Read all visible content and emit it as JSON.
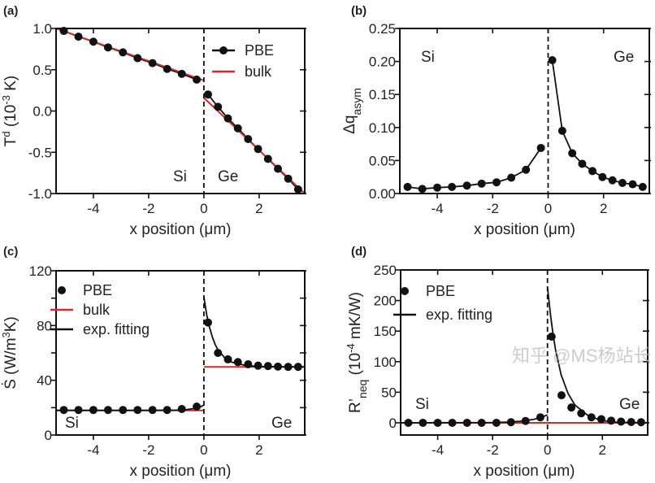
{
  "colors": {
    "pbe": "#111111",
    "bulk": "#d42a2a",
    "fit": "#111111",
    "interface": "#111111"
  },
  "watermark": "知乎 @MS杨站长",
  "chart_data": [
    {
      "panel": "(a)",
      "type": "line",
      "xlabel": "x position (μm)",
      "ylabel": [
        {
          "t": "T"
        },
        {
          "t": "d",
          "sup": true
        },
        {
          "t": " (10"
        },
        {
          "t": "-3",
          "sup": true
        },
        {
          "t": " K)"
        }
      ],
      "xlim": [
        -5.35,
        3.65
      ],
      "ylim": [
        -1.0,
        1.0
      ],
      "xticks": [
        "-4",
        "-2",
        "0",
        "2"
      ],
      "yticks": [
        "-1.0",
        "-0.5",
        "0.0",
        "0.5",
        "1.0"
      ],
      "annotations": [
        "Si",
        "Ge"
      ],
      "legend": {
        "placement": "top-right",
        "entries": [
          "PBE",
          "bulk"
        ]
      },
      "series": [
        {
          "name": "PBE",
          "style": "line-marker",
          "color": "#111111",
          "segments": [
            {
              "x": [
                -5.07,
                -4.54,
                -4.0,
                -3.47,
                -2.93,
                -2.4,
                -1.86,
                -1.33,
                -0.8,
                -0.26
              ],
              "y": [
                0.97,
                0.9,
                0.84,
                0.77,
                0.71,
                0.64,
                0.58,
                0.51,
                0.45,
                0.38
              ]
            },
            {
              "x": [
                0.15,
                0.51,
                0.87,
                1.23,
                1.6,
                1.96,
                2.32,
                2.68,
                3.05,
                3.41
              ],
              "y": [
                0.2,
                0.05,
                -0.09,
                -0.21,
                -0.34,
                -0.46,
                -0.58,
                -0.7,
                -0.82,
                -0.95
              ]
            }
          ]
        },
        {
          "name": "bulk",
          "style": "line",
          "color": "#d42a2a",
          "segments": [
            {
              "x": [
                -5.35,
                0
              ],
              "y": [
                1.0,
                0.37
              ]
            },
            {
              "x": [
                0,
                3.65
              ],
              "y": [
                0.16,
                -1.0
              ]
            }
          ]
        }
      ]
    },
    {
      "panel": "(b)",
      "type": "line",
      "xlabel": "x position (μm)",
      "ylabel": [
        {
          "t": "Δq"
        },
        {
          "t": "asym",
          "sub": true
        }
      ],
      "xlim": [
        -5.35,
        3.65
      ],
      "ylim": [
        0,
        0.25
      ],
      "xticks": [
        "-4",
        "-2",
        "0",
        "2"
      ],
      "yticks": [
        "0.00",
        "0.05",
        "0.10",
        "0.15",
        "0.20",
        "0.25"
      ],
      "annotations": [
        "Si",
        "Ge"
      ],
      "series": [
        {
          "style": "line-marker",
          "color": "#111111",
          "segments": [
            {
              "x": [
                -5.07,
                -4.54,
                -4.0,
                -3.47,
                -2.93,
                -2.4,
                -1.86,
                -1.33,
                -0.8,
                -0.26
              ],
              "y": [
                0.01,
                0.007,
                0.009,
                0.01,
                0.012,
                0.015,
                0.017,
                0.024,
                0.036,
                0.069
              ]
            },
            {
              "x": [
                0.15,
                0.51,
                0.87,
                1.23,
                1.6,
                1.96,
                2.32,
                2.68,
                3.05,
                3.41
              ],
              "y": [
                0.202,
                0.095,
                0.061,
                0.045,
                0.034,
                0.025,
                0.02,
                0.016,
                0.014,
                0.01
              ]
            }
          ]
        }
      ]
    },
    {
      "panel": "(c)",
      "type": "scatter",
      "xlabel": "x position (μm)",
      "ylabel": [
        {
          "t": "Ṡ (W/m"
        },
        {
          "t": "3",
          "sup": true
        },
        {
          "t": "K)"
        }
      ],
      "xlim": [
        -5.35,
        3.65
      ],
      "ylim": [
        0,
        120
      ],
      "xticks": [
        "-4",
        "-2",
        "0",
        "2"
      ],
      "yticks": [
        "0",
        "40",
        "80",
        "120"
      ],
      "annotations": [
        "Si",
        "Ge"
      ],
      "legend": {
        "placement": "top-left",
        "entries": [
          "PBE",
          "bulk",
          "exp. fitting"
        ]
      },
      "series": [
        {
          "name": "bulk",
          "style": "line",
          "color": "#d42a2a",
          "segments": [
            {
              "x": [
                -5.35,
                0
              ],
              "y": [
                18,
                18
              ]
            },
            {
              "x": [
                0,
                3.65
              ],
              "y": [
                49.8,
                49.8
              ]
            }
          ]
        },
        {
          "name": "exp. fitting",
          "style": "line",
          "color": "#111111",
          "segments": [
            {
              "x": [
                -5.35,
                -2,
                -1,
                -0.6,
                -0.3,
                -0.1,
                0
              ],
              "y": [
                18,
                18,
                18.2,
                18.6,
                19.6,
                20.8,
                22
              ]
            },
            {
              "x": [
                0,
                0.1,
                0.2,
                0.3,
                0.4,
                0.5,
                0.75,
                1,
                1.5,
                2,
                3,
                3.65
              ],
              "y": [
                101,
                88,
                79,
                72,
                66.5,
                62.5,
                56.5,
                53.3,
                50.8,
                50.1,
                49.8,
                49.8
              ]
            }
          ]
        },
        {
          "name": "PBE",
          "style": "marker",
          "color": "#111111",
          "segments": [
            {
              "x": [
                -5.07,
                -4.54,
                -4.0,
                -3.47,
                -2.93,
                -2.4,
                -1.86,
                -1.33,
                -0.8,
                -0.26
              ],
              "y": [
                18.3,
                18.3,
                18.3,
                18.3,
                18.3,
                18.3,
                18.3,
                18.3,
                19,
                20.8
              ]
            },
            {
              "x": [
                0.15,
                0.51,
                0.87,
                1.23,
                1.6,
                1.96,
                2.32,
                2.68,
                3.05,
                3.41
              ],
              "y": [
                82.2,
                60,
                55.3,
                53.3,
                51.7,
                50.7,
                50.4,
                50,
                49.8,
                49.8
              ]
            }
          ]
        }
      ]
    },
    {
      "panel": "(d)",
      "type": "scatter",
      "xlabel": "x position (μm)",
      "ylabel": [
        {
          "t": "R’"
        },
        {
          "t": "neq",
          "sub": true
        },
        {
          "t": " (10"
        },
        {
          "t": "-4",
          "sup": true
        },
        {
          "t": " mK/W)"
        }
      ],
      "xlim": [
        -5.35,
        3.65
      ],
      "ylim": [
        -20,
        250
      ],
      "xticks": [
        "-4",
        "-2",
        "0",
        "2"
      ],
      "yticks": [
        "0",
        "50",
        "100",
        "150",
        "200",
        "250"
      ],
      "annotations": [
        "Si",
        "Ge"
      ],
      "legend": {
        "placement": "top-left",
        "entries": [
          "PBE",
          "exp. fitting"
        ]
      },
      "series": [
        {
          "name": "bulk",
          "style": "line",
          "color": "#d42a2a",
          "segments": [
            {
              "x": [
                -5.35,
                3.65
              ],
              "y": [
                0,
                0
              ]
            }
          ]
        },
        {
          "name": "exp. fitting",
          "style": "line",
          "color": "#111111",
          "segments": [
            {
              "x": [
                -5.35,
                -2,
                -1.5,
                -1,
                -0.5,
                -0.25,
                0
              ],
              "y": [
                0,
                0.3,
                1,
                2.5,
                5.5,
                8.5,
                13
              ]
            },
            {
              "x": [
                0,
                0.1,
                0.2,
                0.3,
                0.5,
                0.75,
                1,
                1.5,
                2,
                2.5,
                3.65
              ],
              "y": [
                222,
                180,
                145,
                118,
                78,
                48,
                29,
                11,
                3.5,
                1,
                0
              ]
            }
          ]
        },
        {
          "name": "PBE",
          "style": "marker",
          "color": "#111111",
          "segments": [
            {
              "x": [
                -5.07,
                -4.54,
                -4.0,
                -3.47,
                -2.93,
                -2.4,
                -1.86,
                -1.33,
                -0.8,
                -0.26
              ],
              "y": [
                0,
                0,
                0,
                0,
                0,
                0,
                0,
                1,
                3,
                9
              ]
            },
            {
              "x": [
                0.15,
                0.51,
                0.87,
                1.23,
                1.6,
                1.96,
                2.32,
                2.68,
                3.05,
                3.41
              ],
              "y": [
                141,
                45,
                25,
                15.5,
                9,
                6,
                3.5,
                2,
                1.3,
                1
              ]
            }
          ]
        }
      ]
    }
  ]
}
